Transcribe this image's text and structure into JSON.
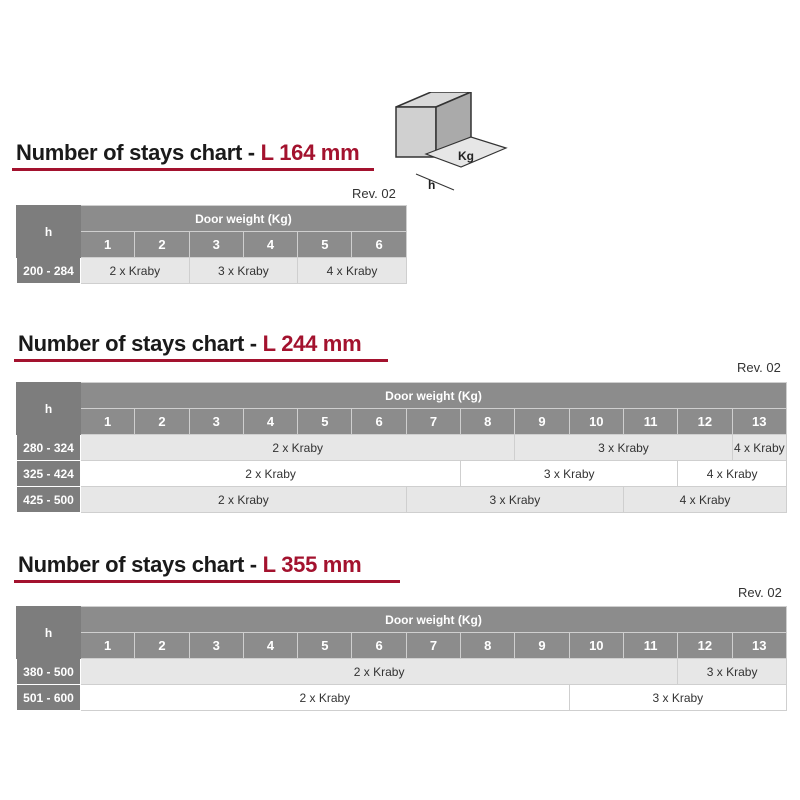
{
  "diagram": {
    "weight_label": "Kg",
    "height_label": "h"
  },
  "charts": [
    {
      "title": "Number of stays chart - ",
      "title_accent": "L 164 mm",
      "rev": "Rev. 02",
      "h_header": "h",
      "group_header": "Door weight (Kg)",
      "columns": [
        "1",
        "2",
        "3",
        "4",
        "5",
        "6"
      ],
      "rows": [
        {
          "h": "200 - 284",
          "cells": [
            {
              "text": "2 x Kraby",
              "span": 2
            },
            {
              "text": "3 x Kraby",
              "span": 2
            },
            {
              "text": "4 x Kraby",
              "span": 2
            }
          ]
        }
      ]
    },
    {
      "title": "Number of stays chart - ",
      "title_accent": "L 244 mm",
      "rev": "Rev. 02",
      "h_header": "h",
      "group_header": "Door weight (Kg)",
      "columns": [
        "1",
        "2",
        "3",
        "4",
        "5",
        "6",
        "7",
        "8",
        "9",
        "10",
        "11",
        "12",
        "13"
      ],
      "rows": [
        {
          "h": "280 - 324",
          "cells": [
            {
              "text": "2 x Kraby",
              "span": 8
            },
            {
              "text": "3 x Kraby",
              "span": 4
            },
            {
              "text": "4 x Kraby",
              "span": 1
            }
          ]
        },
        {
          "h": "325 - 424",
          "cells": [
            {
              "text": "2 x Kraby",
              "span": 7
            },
            {
              "text": "3 x Kraby",
              "span": 4
            },
            {
              "text": "4 x Kraby",
              "span": 2
            }
          ]
        },
        {
          "h": "425 - 500",
          "cells": [
            {
              "text": "2 x Kraby",
              "span": 6
            },
            {
              "text": "3 x Kraby",
              "span": 4
            },
            {
              "text": "4 x Kraby",
              "span": 3
            }
          ]
        }
      ]
    },
    {
      "title": "Number of stays chart - ",
      "title_accent": "L 355 mm",
      "rev": "Rev. 02",
      "h_header": "h",
      "group_header": "Door weight (Kg)",
      "columns": [
        "1",
        "2",
        "3",
        "4",
        "5",
        "6",
        "7",
        "8",
        "9",
        "10",
        "11",
        "12",
        "13"
      ],
      "rows": [
        {
          "h": "380 - 500",
          "cells": [
            {
              "text": "2 x Kraby",
              "span": 11
            },
            {
              "text": "3 x Kraby",
              "span": 2
            }
          ]
        },
        {
          "h": "501 - 600",
          "cells": [
            {
              "text": "2 x Kraby",
              "span": 9
            },
            {
              "text": "3 x Kraby",
              "span": 4
            }
          ]
        }
      ]
    }
  ]
}
